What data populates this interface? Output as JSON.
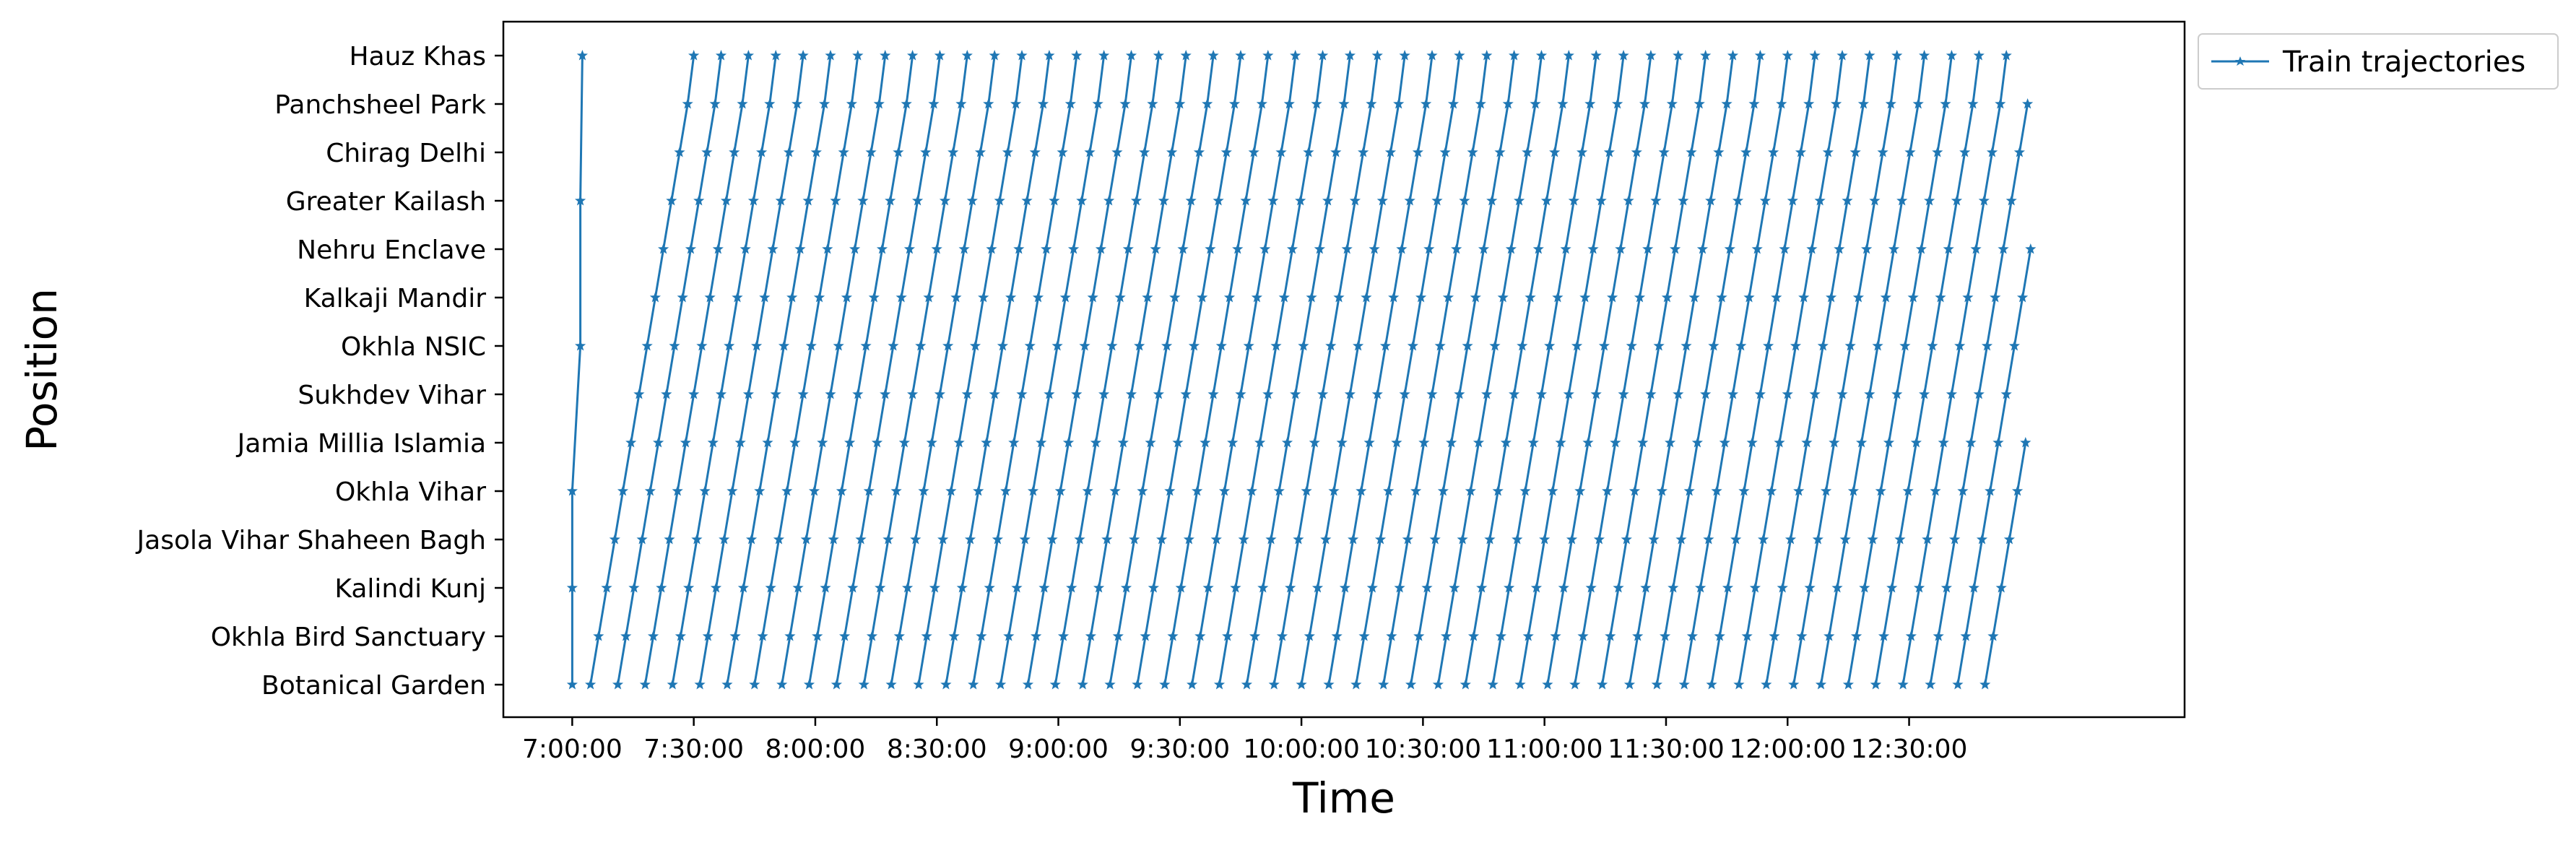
{
  "chart_data": {
    "type": "line",
    "xlabel": "Time",
    "ylabel": "Position",
    "x_ticks": [
      "7:00:00",
      "7:30:00",
      "8:00:00",
      "8:30:00",
      "9:00:00",
      "9:30:00",
      "10:00:00",
      "10:30:00",
      "11:00:00",
      "11:30:00",
      "12:00:00",
      "12:30:00"
    ],
    "x_range": [
      "6:43:00",
      "13:38:00"
    ],
    "stations": [
      "Botanical Garden",
      "Okhla Bird Sanctuary",
      "Kalindi Kunj",
      "Jasola Vihar Shaheen Bagh",
      "Okhla Vihar",
      "Jamia Millia Islamia",
      "Sukhdev Vihar",
      "Okhla NSIC",
      "Kalkaji Mandir",
      "Nehru Enclave",
      "Greater Kailash",
      "Chirag Delhi",
      "Panchsheel Park",
      "Hauz Khas"
    ],
    "legend_position": "outside-upper-right",
    "grid": false,
    "marker": "star",
    "color": "#1f77b4",
    "series": [
      {
        "name": "Train trajectories",
        "description": "Trains depart Botanical Garden every 6:45 from 7:00:00 to 12:51:00, each taking about 25:30 to reach Hauz Khas (about 2:00 per station). The first train enters at Okhla Vihar, Kalindi Kunj and Okhla NSIC at 7:00 / 7:02; the plot is cut off at about 13:00 with trains stopping at intermediate stations.",
        "trips": [
          {
            "depart": "7:00:00",
            "points": [
              [
                "7:00:00",
                0
              ],
              [
                "7:00:00",
                2
              ],
              [
                "7:00:00",
                4
              ],
              [
                "7:02:00",
                7
              ],
              [
                "7:02:00",
                10
              ],
              [
                "7:02:30",
                13
              ]
            ]
          },
          {
            "depart": "7:04:30",
            "points": [
              [
                "7:04:30",
                0
              ],
              [
                "7:06:30",
                1
              ],
              [
                "7:08:30",
                2
              ],
              [
                "7:10:30",
                3
              ],
              [
                "7:12:30",
                4
              ],
              [
                "7:14:30",
                5
              ],
              [
                "7:16:30",
                6
              ],
              [
                "7:18:30",
                7
              ],
              [
                "7:20:30",
                8
              ],
              [
                "7:22:30",
                9
              ],
              [
                "7:24:30",
                10
              ],
              [
                "7:26:30",
                11
              ],
              [
                "7:28:30",
                12
              ],
              [
                "7:30:00",
                13
              ]
            ]
          },
          {
            "depart": "7:11:15",
            "points": [
              [
                "7:11:15",
                0
              ],
              [
                "7:13:15",
                1
              ],
              [
                "7:15:15",
                2
              ],
              [
                "7:17:15",
                3
              ],
              [
                "7:19:15",
                4
              ],
              [
                "7:21:15",
                5
              ],
              [
                "7:23:15",
                6
              ],
              [
                "7:25:15",
                7
              ],
              [
                "7:27:15",
                8
              ],
              [
                "7:29:15",
                9
              ],
              [
                "7:31:15",
                10
              ],
              [
                "7:33:15",
                11
              ],
              [
                "7:35:15",
                12
              ],
              [
                "7:36:45",
                13
              ]
            ]
          }
        ]
      }
    ]
  }
}
